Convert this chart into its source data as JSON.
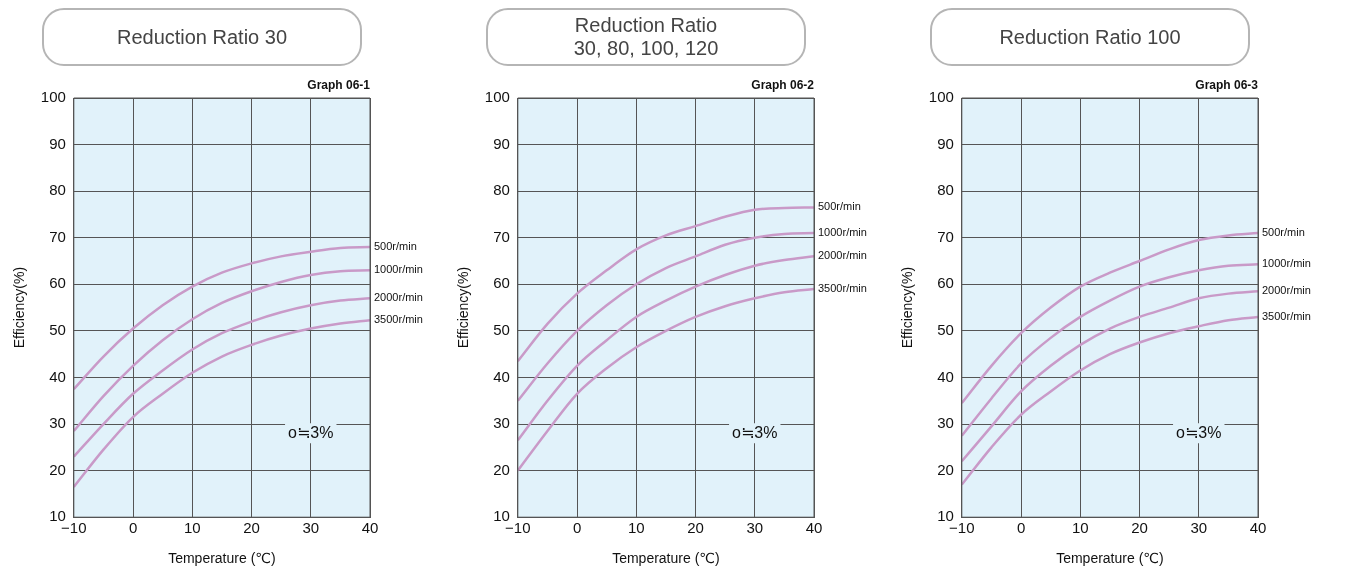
{
  "chart_data": [
    {
      "type": "line",
      "title": "Reduction Ratio 30",
      "xlabel": "Temperature (℃)",
      "ylabel": "Efficiency(%)",
      "annotations": [
        "Graph 06-1",
        "o≒3%"
      ],
      "x": [
        -10,
        -5,
        0,
        5,
        10,
        15,
        20,
        25,
        30,
        35,
        40
      ],
      "xlim": [
        -10,
        40
      ],
      "xticks": [
        -10,
        0,
        10,
        20,
        30,
        40
      ],
      "ylim": [
        10,
        100
      ],
      "yticks": [
        10,
        20,
        30,
        40,
        50,
        60,
        70,
        80,
        90,
        100
      ],
      "grid": true,
      "legend": false,
      "marker": "none",
      "line_style": "solid",
      "series": [
        {
          "name": "500r/min",
          "color": "#c99ac8",
          "values": [
            37.5,
            44.5,
            50.5,
            55.5,
            59.5,
            62.5,
            64.5,
            66,
            67,
            67.8,
            68
          ]
        },
        {
          "name": "1000r/min",
          "color": "#c99ac8",
          "values": [
            28.5,
            36,
            42.5,
            48,
            52.5,
            56,
            58.5,
            60.5,
            62,
            62.8,
            63
          ]
        },
        {
          "name": "2000r/min",
          "color": "#c99ac8",
          "values": [
            23,
            30,
            36.5,
            41.5,
            46,
            49.5,
            52,
            54,
            55.5,
            56.5,
            57
          ]
        },
        {
          "name": "3500r/min",
          "color": "#c99ac8",
          "values": [
            16.5,
            24.5,
            31.5,
            36.5,
            41,
            44.5,
            47,
            49,
            50.5,
            51.6,
            52.3
          ]
        }
      ]
    },
    {
      "type": "line",
      "title": "Reduction Ratio\n30, 80, 100, 120",
      "xlabel": "Temperature (℃)",
      "ylabel": "Efficiency(%)",
      "annotations": [
        "Graph 06-2",
        "o≒3%"
      ],
      "x": [
        -10,
        -5,
        0,
        5,
        10,
        15,
        20,
        25,
        30,
        35,
        40
      ],
      "xlim": [
        -10,
        40
      ],
      "xticks": [
        -10,
        0,
        10,
        20,
        30,
        40
      ],
      "ylim": [
        10,
        100
      ],
      "yticks": [
        10,
        20,
        30,
        40,
        50,
        60,
        70,
        80,
        90,
        100
      ],
      "grid": true,
      "legend": false,
      "marker": "none",
      "line_style": "solid",
      "series": [
        {
          "name": "500r/min",
          "color": "#c99ac8",
          "values": [
            43.5,
            51.5,
            58,
            63,
            67.5,
            70.5,
            72.5,
            74.5,
            76,
            76.4,
            76.5
          ]
        },
        {
          "name": "1000r/min",
          "color": "#c99ac8",
          "values": [
            35,
            43,
            50,
            55.5,
            60,
            63.5,
            66,
            68.5,
            70,
            70.8,
            71
          ]
        },
        {
          "name": "2000r/min",
          "color": "#c99ac8",
          "values": [
            26.5,
            35,
            42.5,
            48,
            53,
            56.5,
            59.5,
            62,
            64,
            65.2,
            66
          ]
        },
        {
          "name": "3500r/min",
          "color": "#c99ac8",
          "values": [
            20,
            28.5,
            36.5,
            42,
            46.5,
            50,
            53,
            55.3,
            57,
            58.3,
            59
          ]
        }
      ]
    },
    {
      "type": "line",
      "title": "Reduction Ratio 100",
      "xlabel": "Temperature (℃)",
      "ylabel": "Efficiency(%)",
      "annotations": [
        "Graph 06-3",
        "o≒3%"
      ],
      "x": [
        -10,
        -5,
        0,
        5,
        10,
        15,
        20,
        25,
        30,
        35,
        40
      ],
      "xlim": [
        -10,
        40
      ],
      "xticks": [
        -10,
        0,
        10,
        20,
        30,
        40
      ],
      "ylim": [
        10,
        100
      ],
      "yticks": [
        10,
        20,
        30,
        40,
        50,
        60,
        70,
        80,
        90,
        100
      ],
      "grid": true,
      "legend": false,
      "marker": "none",
      "line_style": "solid",
      "series": [
        {
          "name": "500r/min",
          "color": "#c99ac8",
          "values": [
            34.5,
            42.5,
            49.5,
            55,
            59.5,
            62.5,
            65,
            67.5,
            69.5,
            70.5,
            71
          ]
        },
        {
          "name": "1000r/min",
          "color": "#c99ac8",
          "values": [
            27.5,
            35.5,
            43,
            48.5,
            53,
            56.5,
            59.5,
            61.5,
            63,
            64,
            64.3
          ]
        },
        {
          "name": "2000r/min",
          "color": "#c99ac8",
          "values": [
            22,
            29.5,
            37,
            42.5,
            47,
            50.5,
            53,
            55,
            57,
            58,
            58.5
          ]
        },
        {
          "name": "3500r/min",
          "color": "#c99ac8",
          "values": [
            17,
            25,
            32,
            37,
            41.5,
            45,
            47.5,
            49.5,
            51,
            52.3,
            53
          ]
        }
      ]
    }
  ]
}
